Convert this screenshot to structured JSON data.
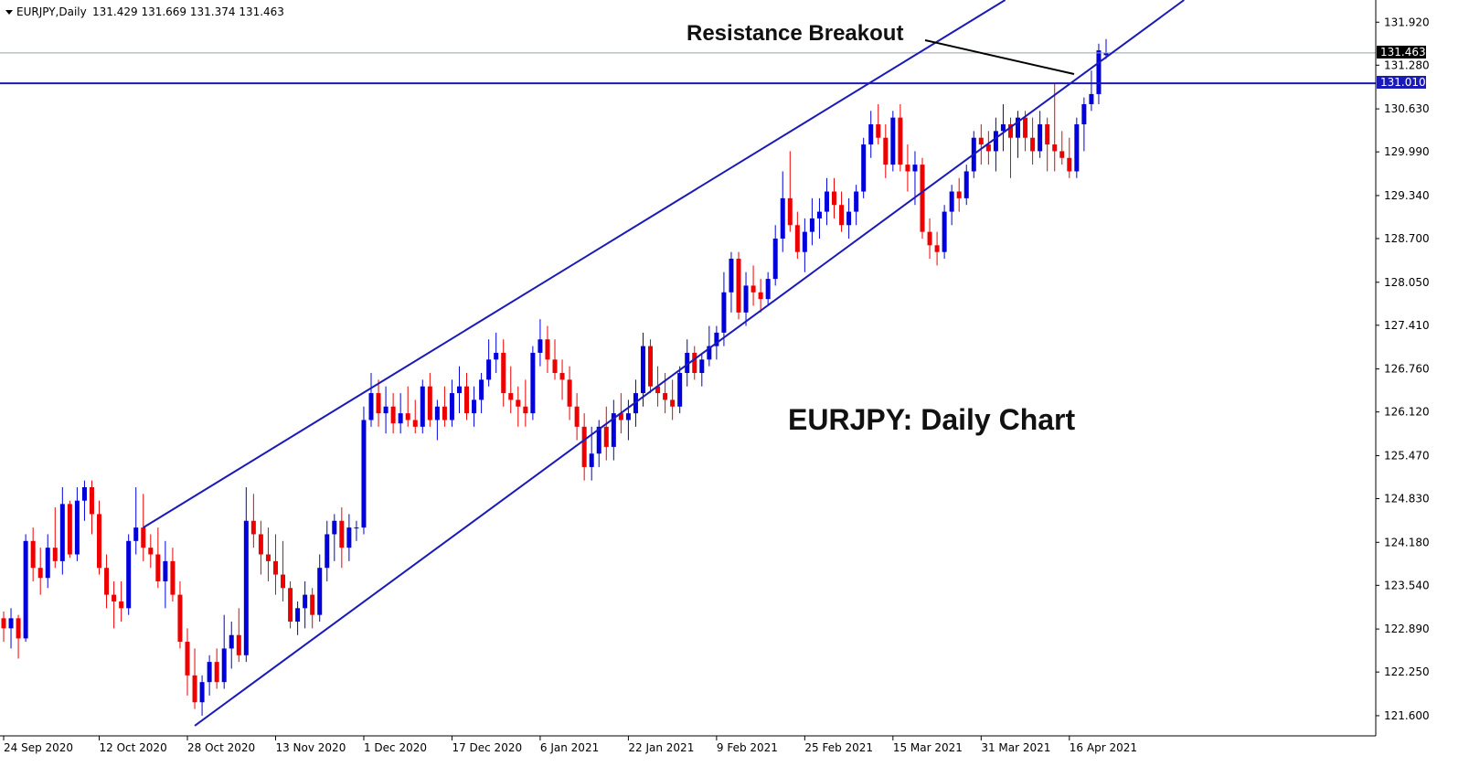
{
  "header": {
    "symbol": "EURJPY,Daily",
    "ohlc": "131.429 131.669 131.374 131.463"
  },
  "annotations": {
    "breakout": "Resistance Breakout",
    "chart_title": "EURJPY: Daily Chart"
  },
  "price_tags": {
    "current": "131.463",
    "resistance": "131.010"
  },
  "colors": {
    "bull": "#0000dd",
    "bear": "#ee0000",
    "line": "#1a1ab8",
    "price_line": "#9aa3a8",
    "axis": "#000000"
  },
  "chart_data": {
    "type": "candlestick",
    "title": "",
    "ylim": [
      121.3,
      132.25
    ],
    "y_ticks": [
      "131.920",
      "131.280",
      "130.630",
      "129.990",
      "129.340",
      "128.700",
      "128.050",
      "127.410",
      "126.760",
      "126.120",
      "125.470",
      "124.830",
      "124.180",
      "123.540",
      "122.890",
      "122.250",
      "121.600"
    ],
    "x_ticks": [
      {
        "label": "24 Sep 2020",
        "index": 0
      },
      {
        "label": "12 Oct 2020",
        "index": 13
      },
      {
        "label": "28 Oct 2020",
        "index": 25
      },
      {
        "label": "13 Nov 2020",
        "index": 37
      },
      {
        "label": "1 Dec 2020",
        "index": 49
      },
      {
        "label": "17 Dec 2020",
        "index": 61
      },
      {
        "label": "6 Jan 2021",
        "index": 73
      },
      {
        "label": "22 Jan 2021",
        "index": 85
      },
      {
        "label": "9 Feb 2021",
        "index": 97
      },
      {
        "label": "25 Feb 2021",
        "index": 109
      },
      {
        "label": "15 Mar 2021",
        "index": 121
      },
      {
        "label": "31 Mar 2021",
        "index": 133
      },
      {
        "label": "16 Apr 2021",
        "index": 145
      }
    ],
    "resistance_level": 131.01,
    "current_price": 131.463,
    "channel": {
      "upper": [
        {
          "i": 19,
          "p": 124.4
        },
        {
          "i": 140,
          "p": 132.5
        }
      ],
      "lower": [
        {
          "i": 26,
          "p": 121.45
        },
        {
          "i": 155,
          "p": 131.8
        }
      ]
    },
    "candles": [
      [
        123.05,
        123.15,
        122.7,
        122.9
      ],
      [
        122.9,
        123.2,
        122.6,
        123.05
      ],
      [
        123.05,
        123.1,
        122.45,
        122.75
      ],
      [
        122.75,
        124.3,
        122.7,
        124.2
      ],
      [
        124.2,
        124.4,
        123.6,
        123.8
      ],
      [
        123.8,
        124.1,
        123.4,
        123.65
      ],
      [
        123.65,
        124.3,
        123.5,
        124.1
      ],
      [
        124.1,
        124.7,
        123.8,
        123.9
      ],
      [
        123.9,
        125.0,
        123.7,
        124.75
      ],
      [
        124.75,
        124.8,
        123.95,
        124.0
      ],
      [
        124.0,
        125.0,
        123.9,
        124.8
      ],
      [
        124.8,
        125.1,
        124.5,
        125.0
      ],
      [
        125.0,
        125.1,
        124.3,
        124.6
      ],
      [
        124.6,
        124.8,
        123.7,
        123.8
      ],
      [
        123.8,
        124.0,
        123.2,
        123.4
      ],
      [
        123.4,
        123.6,
        122.9,
        123.3
      ],
      [
        123.3,
        123.6,
        123.0,
        123.2
      ],
      [
        123.2,
        124.3,
        123.1,
        124.2
      ],
      [
        124.2,
        125.0,
        124.0,
        124.4
      ],
      [
        124.4,
        124.9,
        123.9,
        124.1
      ],
      [
        124.1,
        124.3,
        123.8,
        124.0
      ],
      [
        124.0,
        124.4,
        123.5,
        123.6
      ],
      [
        123.6,
        124.2,
        123.2,
        123.9
      ],
      [
        123.9,
        124.1,
        123.3,
        123.4
      ],
      [
        123.4,
        123.6,
        122.6,
        122.7
      ],
      [
        122.7,
        122.9,
        121.9,
        122.2
      ],
      [
        122.2,
        122.6,
        121.7,
        121.8
      ],
      [
        121.8,
        122.2,
        121.6,
        122.1
      ],
      [
        122.1,
        122.5,
        121.9,
        122.4
      ],
      [
        122.4,
        122.6,
        122.0,
        122.1
      ],
      [
        122.1,
        123.1,
        122.0,
        122.6
      ],
      [
        122.6,
        123.0,
        122.3,
        122.8
      ],
      [
        122.8,
        123.2,
        122.4,
        122.5
      ],
      [
        122.5,
        125.0,
        122.4,
        124.5
      ],
      [
        124.5,
        124.9,
        124.1,
        124.3
      ],
      [
        124.3,
        124.5,
        123.7,
        124.0
      ],
      [
        124.0,
        124.4,
        123.6,
        123.9
      ],
      [
        123.9,
        124.3,
        123.4,
        123.7
      ],
      [
        123.7,
        124.2,
        123.3,
        123.5
      ],
      [
        123.5,
        123.6,
        122.9,
        123.0
      ],
      [
        123.0,
        123.3,
        122.8,
        123.2
      ],
      [
        123.2,
        123.6,
        122.9,
        123.4
      ],
      [
        123.4,
        123.5,
        122.9,
        123.1
      ],
      [
        123.1,
        124.0,
        123.0,
        123.8
      ],
      [
        123.8,
        124.5,
        123.6,
        124.3
      ],
      [
        124.3,
        124.6,
        123.9,
        124.5
      ],
      [
        124.5,
        124.7,
        123.8,
        124.1
      ],
      [
        124.1,
        124.6,
        123.9,
        124.4
      ],
      [
        124.4,
        124.5,
        124.2,
        124.4
      ],
      [
        124.4,
        126.2,
        124.3,
        126.0
      ],
      [
        126.0,
        126.7,
        125.9,
        126.4
      ],
      [
        126.4,
        126.6,
        125.9,
        126.1
      ],
      [
        126.1,
        126.5,
        125.8,
        126.2
      ],
      [
        126.2,
        126.4,
        125.8,
        125.95
      ],
      [
        125.95,
        126.4,
        125.8,
        126.1
      ],
      [
        126.1,
        126.5,
        125.9,
        126.0
      ],
      [
        126.0,
        126.3,
        125.8,
        125.9
      ],
      [
        125.9,
        126.6,
        125.8,
        126.5
      ],
      [
        126.5,
        126.7,
        125.9,
        126.0
      ],
      [
        126.0,
        126.3,
        125.7,
        126.2
      ],
      [
        126.2,
        126.5,
        125.9,
        126.0
      ],
      [
        126.0,
        126.6,
        125.9,
        126.4
      ],
      [
        126.4,
        126.8,
        126.1,
        126.5
      ],
      [
        126.5,
        126.7,
        126.0,
        126.1
      ],
      [
        126.1,
        126.5,
        125.9,
        126.3
      ],
      [
        126.3,
        126.7,
        126.1,
        126.6
      ],
      [
        126.6,
        127.2,
        126.5,
        126.9
      ],
      [
        126.9,
        127.3,
        126.7,
        127.0
      ],
      [
        127.0,
        127.2,
        126.2,
        126.4
      ],
      [
        126.4,
        126.8,
        126.1,
        126.3
      ],
      [
        126.3,
        126.5,
        125.9,
        126.2
      ],
      [
        126.2,
        126.6,
        125.9,
        126.1
      ],
      [
        126.1,
        127.1,
        126.0,
        127.0
      ],
      [
        127.0,
        127.5,
        126.8,
        127.2
      ],
      [
        127.2,
        127.4,
        126.7,
        126.9
      ],
      [
        126.9,
        127.2,
        126.6,
        126.7
      ],
      [
        126.7,
        126.9,
        126.3,
        126.6
      ],
      [
        126.6,
        126.8,
        126.0,
        126.2
      ],
      [
        126.2,
        126.4,
        125.7,
        125.9
      ],
      [
        125.9,
        126.1,
        125.1,
        125.3
      ],
      [
        125.3,
        125.9,
        125.1,
        125.5
      ],
      [
        125.5,
        126.0,
        125.3,
        125.9
      ],
      [
        125.9,
        126.2,
        125.4,
        125.6
      ],
      [
        125.6,
        126.3,
        125.4,
        126.1
      ],
      [
        126.1,
        126.4,
        125.8,
        126.0
      ],
      [
        126.0,
        126.3,
        125.7,
        126.1
      ],
      [
        126.1,
        126.6,
        125.9,
        126.4
      ],
      [
        126.4,
        127.3,
        126.2,
        127.1
      ],
      [
        127.1,
        127.2,
        126.4,
        126.5
      ],
      [
        126.5,
        126.8,
        126.2,
        126.4
      ],
      [
        126.4,
        126.7,
        126.1,
        126.3
      ],
      [
        126.3,
        126.6,
        126.0,
        126.2
      ],
      [
        126.2,
        126.8,
        126.1,
        126.7
      ],
      [
        126.7,
        127.2,
        126.5,
        127.0
      ],
      [
        127.0,
        127.1,
        126.6,
        126.7
      ],
      [
        126.7,
        127.0,
        126.5,
        126.9
      ],
      [
        126.9,
        127.4,
        126.8,
        127.1
      ],
      [
        127.1,
        127.4,
        126.9,
        127.3
      ],
      [
        127.3,
        128.2,
        127.1,
        127.9
      ],
      [
        127.9,
        128.5,
        127.6,
        128.4
      ],
      [
        128.4,
        128.5,
        127.5,
        127.6
      ],
      [
        127.6,
        128.2,
        127.4,
        128.0
      ],
      [
        128.0,
        128.3,
        127.7,
        127.9
      ],
      [
        127.9,
        128.1,
        127.6,
        127.8
      ],
      [
        127.8,
        128.2,
        127.7,
        128.1
      ],
      [
        128.1,
        128.9,
        128.0,
        128.7
      ],
      [
        128.7,
        129.7,
        128.5,
        129.3
      ],
      [
        129.3,
        130.0,
        128.8,
        128.9
      ],
      [
        128.9,
        129.1,
        128.4,
        128.5
      ],
      [
        128.5,
        129.0,
        128.2,
        128.8
      ],
      [
        128.8,
        129.3,
        128.6,
        129.0
      ],
      [
        129.0,
        129.3,
        128.7,
        129.1
      ],
      [
        129.1,
        129.6,
        128.9,
        129.4
      ],
      [
        129.4,
        129.6,
        129.0,
        129.2
      ],
      [
        129.2,
        129.4,
        128.8,
        128.9
      ],
      [
        128.9,
        129.3,
        128.7,
        129.1
      ],
      [
        129.1,
        129.5,
        128.9,
        129.4
      ],
      [
        129.4,
        130.2,
        129.3,
        130.1
      ],
      [
        130.1,
        130.6,
        129.9,
        130.4
      ],
      [
        130.4,
        130.7,
        130.1,
        130.2
      ],
      [
        130.2,
        130.4,
        129.6,
        129.8
      ],
      [
        129.8,
        130.6,
        129.7,
        130.5
      ],
      [
        130.5,
        130.7,
        129.7,
        129.8
      ],
      [
        129.8,
        130.1,
        129.4,
        129.7
      ],
      [
        129.7,
        130.0,
        129.2,
        129.8
      ],
      [
        129.8,
        129.9,
        128.7,
        128.8
      ],
      [
        128.8,
        129.0,
        128.4,
        128.6
      ],
      [
        128.6,
        128.8,
        128.3,
        128.5
      ],
      [
        128.5,
        129.2,
        128.4,
        129.1
      ],
      [
        129.1,
        129.5,
        128.9,
        129.4
      ],
      [
        129.4,
        129.6,
        129.1,
        129.3
      ],
      [
        129.3,
        129.8,
        129.2,
        129.7
      ],
      [
        129.7,
        130.3,
        129.6,
        130.2
      ],
      [
        130.2,
        130.4,
        129.8,
        130.1
      ],
      [
        130.1,
        130.3,
        129.8,
        130.0
      ],
      [
        130.0,
        130.5,
        129.7,
        130.3
      ],
      [
        130.3,
        130.7,
        130.0,
        130.4
      ],
      [
        130.4,
        130.5,
        129.6,
        130.2
      ],
      [
        130.2,
        130.6,
        129.9,
        130.5
      ],
      [
        130.5,
        130.6,
        130.0,
        130.2
      ],
      [
        130.2,
        130.5,
        129.8,
        130.0
      ],
      [
        130.0,
        130.6,
        129.9,
        130.4
      ],
      [
        130.4,
        130.5,
        129.7,
        130.1
      ],
      [
        130.1,
        131.0,
        129.7,
        130.0
      ],
      [
        130.0,
        130.3,
        129.8,
        129.9
      ],
      [
        129.9,
        130.2,
        129.6,
        129.7
      ],
      [
        129.7,
        130.5,
        129.6,
        130.4
      ],
      [
        130.4,
        130.8,
        130.0,
        130.7
      ],
      [
        130.7,
        131.2,
        130.6,
        130.85
      ],
      [
        130.85,
        131.6,
        130.7,
        131.5
      ],
      [
        131.429,
        131.669,
        131.374,
        131.463
      ]
    ]
  }
}
